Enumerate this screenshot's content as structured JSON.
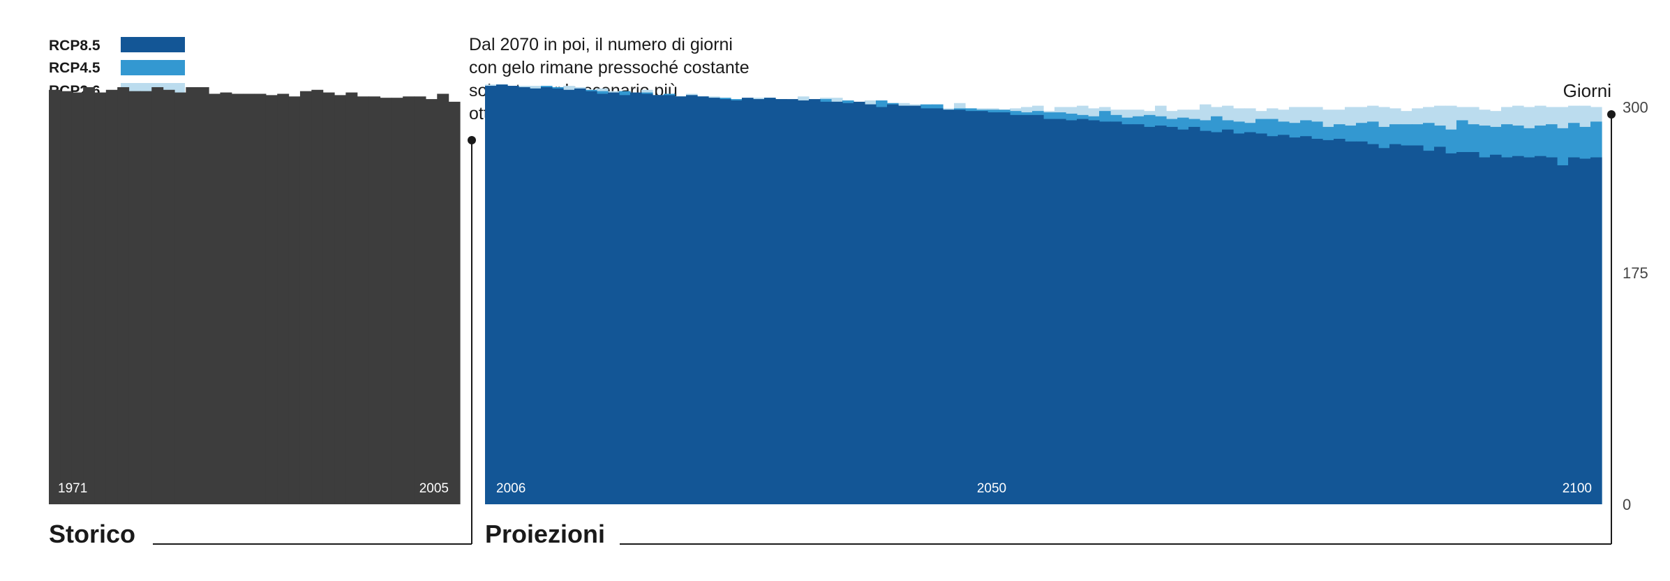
{
  "chart_data": {
    "type": "area",
    "ylabel": "Giorni",
    "ylim": [
      0,
      325
    ],
    "yticks": [
      0,
      175,
      300
    ],
    "legend": {
      "placement": "top-left",
      "entries": [
        {
          "name": "RCP8.5",
          "color": "#135696"
        },
        {
          "name": "RCP4.5",
          "color": "#3398d1"
        },
        {
          "name": "RCP2.6",
          "color": "#bbdcee"
        }
      ]
    },
    "annotation": [
      "Dal 2070 in poi, il numero di giorni",
      "con gelo rimane pressoché costante",
      "soltanto per lo scenario più",
      "ottimistico."
    ],
    "panels": {
      "historical": {
        "label": "Storico",
        "start_year": "1971",
        "end_year": "2005",
        "color": "#3d3d3d",
        "values": [
          313,
          312,
          311,
          315,
          311,
          313,
          315,
          312,
          312,
          315,
          313,
          311,
          315,
          315,
          310,
          311,
          310,
          310,
          310,
          309,
          310,
          308,
          312,
          313,
          311,
          309,
          311,
          308,
          308,
          307,
          307,
          308,
          308,
          306,
          310,
          304
        ]
      },
      "projections": {
        "label": "Proiezioni",
        "start_year": "2006",
        "mid_year": "2050",
        "end_year": "2100",
        "series": [
          {
            "name": "RCP8.5",
            "color": "#135696",
            "values": [
              316,
              317,
              316,
              315,
              314,
              315,
              314,
              313,
              314,
              312,
              310,
              311,
              309,
              311,
              310,
              309,
              309,
              308,
              309,
              308,
              307,
              306,
              305,
              307,
              306,
              307,
              306,
              306,
              305,
              306,
              304,
              304,
              303,
              304,
              302,
              300,
              302,
              301,
              301,
              299,
              299,
              298,
              298,
              297,
              297,
              296,
              296,
              294,
              294,
              294,
              291,
              291,
              290,
              291,
              290,
              289,
              289,
              287,
              287,
              285,
              286,
              285,
              283,
              285,
              282,
              281,
              283,
              280,
              281,
              280,
              278,
              279,
              277,
              278,
              276,
              275,
              276,
              274,
              274,
              272,
              269,
              272,
              271,
              271,
              267,
              270,
              265,
              266,
              266,
              262,
              264,
              262,
              263,
              262,
              263,
              262,
              256,
              262,
              261,
              262
            ]
          },
          {
            "name": "RCP4.5",
            "color": "#3398d1",
            "values": [
              316,
              317,
              316,
              315,
              314,
              316,
              315,
              312,
              313,
              313,
              312,
              310,
              312,
              310,
              311,
              309,
              310,
              308,
              309,
              308,
              307,
              307,
              306,
              306,
              305,
              307,
              306,
              305,
              304,
              303,
              306,
              304,
              305,
              302,
              302,
              305,
              303,
              301,
              300,
              302,
              302,
              298,
              299,
              299,
              298,
              298,
              298,
              297,
              296,
              297,
              296,
              296,
              295,
              294,
              293,
              297,
              294,
              292,
              293,
              294,
              293,
              291,
              292,
              291,
              290,
              293,
              290,
              289,
              288,
              291,
              291,
              289,
              288,
              290,
              289,
              285,
              287,
              286,
              288,
              289,
              285,
              287,
              287,
              287,
              288,
              286,
              283,
              290,
              287,
              286,
              285,
              287,
              286,
              284,
              286,
              287,
              284,
              288,
              285,
              289
            ]
          },
          {
            "name": "RCP2.6",
            "color": "#bbdcee",
            "values": [
              317,
              315,
              316,
              316,
              316,
              315,
              314,
              316,
              315,
              313,
              314,
              312,
              311,
              310,
              313,
              309,
              309,
              308,
              310,
              307,
              308,
              306,
              306,
              307,
              307,
              306,
              305,
              304,
              308,
              304,
              307,
              307,
              303,
              303,
              305,
              304,
              303,
              303,
              302,
              300,
              302,
              299,
              303,
              299,
              299,
              299,
              298,
              299,
              300,
              301,
              297,
              300,
              300,
              301,
              299,
              300,
              298,
              298,
              298,
              297,
              301,
              297,
              298,
              298,
              302,
              300,
              301,
              299,
              299,
              297,
              299,
              298,
              300,
              300,
              300,
              298,
              298,
              300,
              300,
              301,
              300,
              299,
              297,
              299,
              300,
              301,
              301,
              300,
              300,
              298,
              297,
              300,
              301,
              300,
              301,
              300,
              300,
              301,
              301,
              300
            ]
          }
        ]
      }
    }
  }
}
